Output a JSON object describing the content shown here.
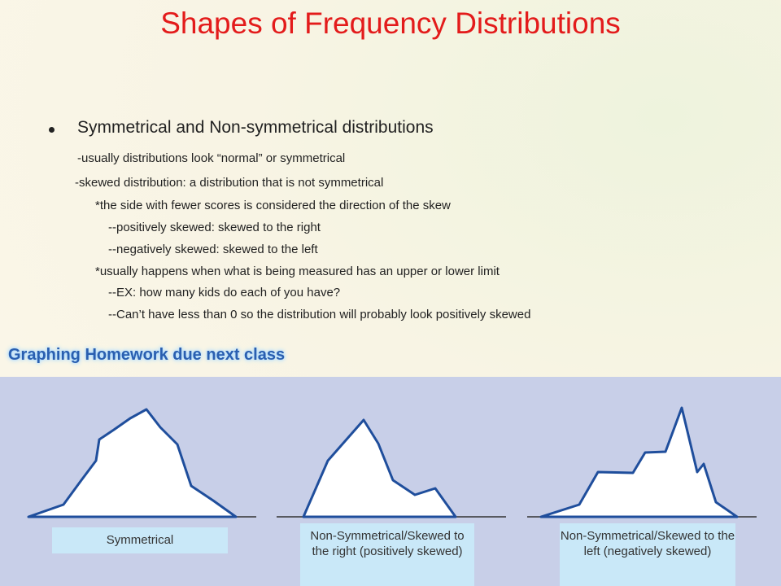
{
  "header": {
    "title": "Shapes of Frequency Distributions"
  },
  "body": {
    "bullet": "Symmetrical and Non-symmetrical distributions",
    "lines": [
      "-usually distributions look “normal” or symmetrical",
      "-skewed distribution: a distribution that is not symmetrical",
      "*the side with fewer scores is considered the direction of the skew",
      "--positively skewed: skewed to the right",
      "--negatively skewed: skewed to the left",
      "*usually happens when what is being measured has an upper or lower limit",
      "--EX: how many kids do each of you have?",
      "--Can’t have less than 0 so the distribution will probably look positively skewed"
    ],
    "homework": "Graphing Homework due next class"
  },
  "shapes": [
    {
      "label": "Symmetrical"
    },
    {
      "label": "Non-Symmetrical/Skewed to the right (positively skewed)"
    },
    {
      "label": "Non-Symmetrical/Skewed to the left (negatively skewed)"
    }
  ]
}
